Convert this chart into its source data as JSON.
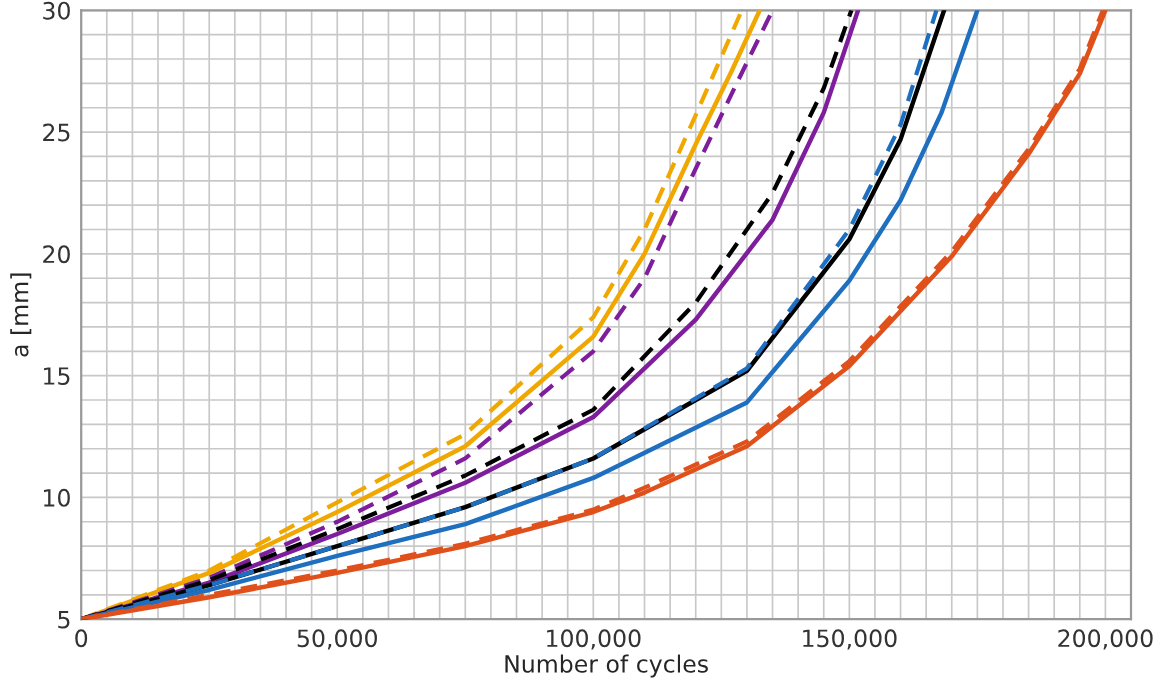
{
  "chart_data": {
    "type": "line",
    "xlabel": "Number of cycles",
    "ylabel": "a [mm]",
    "xlim": [
      0,
      205000
    ],
    "ylim": [
      5,
      30
    ],
    "xticks": [
      0,
      {
        "value": 50000,
        "label": "50,000"
      },
      {
        "value": 100000,
        "label": "100,000"
      },
      {
        "value": 150000,
        "label": "150,000"
      },
      {
        "value": 200000,
        "label": "200,000"
      }
    ],
    "yticks": [
      5,
      10,
      15,
      20,
      25,
      30
    ],
    "grid": true,
    "marker": "none",
    "series": [
      {
        "color": "#f0a800",
        "line_style": "solid",
        "x": [
          0,
          25000,
          50000,
          75000,
          100000,
          110000,
          120000,
          127000,
          132500
        ],
        "values": [
          5,
          6.9,
          9.4,
          12.1,
          16.6,
          20.0,
          24.5,
          27.5,
          30
        ]
      },
      {
        "color": "#f0a800",
        "line_style": "dashed",
        "x": [
          0,
          25000,
          50000,
          75000,
          100000,
          110000,
          120000,
          129000
        ],
        "values": [
          5,
          7.0,
          9.8,
          12.6,
          17.4,
          21.0,
          25.7,
          30
        ]
      },
      {
        "color": "#7e1e9c",
        "line_style": "solid",
        "x": [
          0,
          25000,
          50000,
          75000,
          100000,
          120000,
          135000,
          145000,
          151700
        ],
        "values": [
          5,
          6.5,
          8.5,
          10.6,
          13.3,
          17.3,
          21.4,
          25.8,
          30
        ]
      },
      {
        "color": "#7e1e9c",
        "line_style": "dashed",
        "x": [
          0,
          25000,
          50000,
          75000,
          100000,
          110000,
          120000,
          128000,
          135000
        ],
        "values": [
          5,
          6.7,
          9.0,
          11.6,
          16.0,
          19.0,
          23.5,
          27.0,
          30
        ]
      },
      {
        "color": "#000000",
        "line_style": "solid",
        "x": [
          0,
          25000,
          50000,
          75000,
          100000,
          130000,
          150000,
          160000,
          168500
        ],
        "values": [
          5,
          6.4,
          8.0,
          9.6,
          11.6,
          15.2,
          20.6,
          24.7,
          30
        ]
      },
      {
        "color": "#000000",
        "line_style": "dashed",
        "x": [
          0,
          25000,
          50000,
          75000,
          100000,
          120000,
          135000,
          145000,
          150400
        ],
        "values": [
          5,
          6.6,
          8.7,
          10.9,
          13.6,
          18.0,
          22.5,
          26.8,
          30
        ]
      },
      {
        "color": "#1f6fc0",
        "line_style": "solid",
        "x": [
          0,
          25000,
          50000,
          75000,
          100000,
          130000,
          150000,
          160000,
          168000,
          175000
        ],
        "values": [
          5,
          6.2,
          7.6,
          8.9,
          10.8,
          13.9,
          18.9,
          22.2,
          25.8,
          30
        ]
      },
      {
        "color": "#1f6fc0",
        "line_style": "dashed",
        "x": [
          0,
          25000,
          50000,
          75000,
          100000,
          130000,
          150000,
          160000,
          167000
        ],
        "values": [
          5,
          6.4,
          8.0,
          9.6,
          11.6,
          15.3,
          21.0,
          25.3,
          30
        ]
      },
      {
        "color": "#e0501a",
        "line_style": "solid",
        "x": [
          0,
          25000,
          50000,
          75000,
          100000,
          110000,
          130000,
          150000,
          170000,
          185000,
          195000,
          200000
        ],
        "values": [
          5,
          5.9,
          6.9,
          8.0,
          9.4,
          10.2,
          12.1,
          15.4,
          19.9,
          24.1,
          27.4,
          30
        ]
      },
      {
        "color": "#e0501a",
        "line_style": "dashed",
        "x": [
          0,
          25000,
          50000,
          75000,
          100000,
          110000,
          130000,
          150000,
          170000,
          185000,
          195000,
          199500
        ],
        "values": [
          5,
          6.0,
          7.0,
          8.1,
          9.5,
          10.4,
          12.3,
          15.6,
          20.1,
          24.3,
          27.6,
          30
        ]
      }
    ]
  }
}
